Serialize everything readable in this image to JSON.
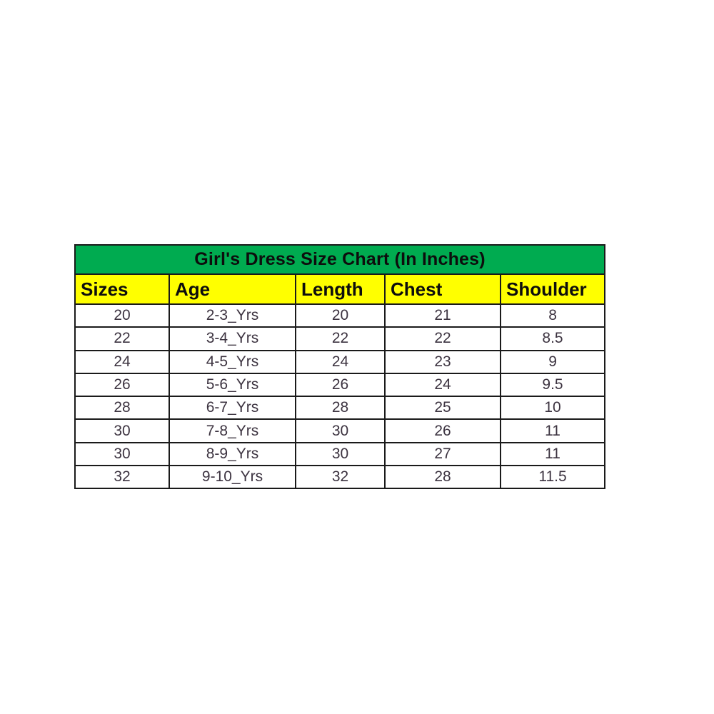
{
  "chart_data": {
    "type": "table",
    "title": "Girl's Dress Size Chart (In Inches)",
    "columns": [
      "Sizes",
      "Age",
      "Length",
      "Chest",
      "Shoulder"
    ],
    "rows": [
      [
        "20",
        "2-3_Yrs",
        "20",
        "21",
        "8"
      ],
      [
        "22",
        "3-4_Yrs",
        "22",
        "22",
        "8.5"
      ],
      [
        "24",
        "4-5_Yrs",
        "24",
        "23",
        "9"
      ],
      [
        "26",
        "5-6_Yrs",
        "26",
        "24",
        "9.5"
      ],
      [
        "28",
        "6-7_Yrs",
        "28",
        "25",
        "10"
      ],
      [
        "30",
        "7-8_Yrs",
        "30",
        "26",
        "11"
      ],
      [
        "30",
        "8-9_Yrs",
        "30",
        "27",
        "11"
      ],
      [
        "32",
        "9-10_Yrs",
        "32",
        "28",
        "11.5"
      ]
    ]
  },
  "table": {
    "title": "Girl's Dress Size Chart (In Inches)",
    "columns": [
      "Sizes",
      "Age",
      "Length",
      "Chest",
      "Shoulder"
    ],
    "rows": [
      [
        "20",
        "2-3_Yrs",
        "20",
        "21",
        "8"
      ],
      [
        "22",
        "3-4_Yrs",
        "22",
        "22",
        "8.5"
      ],
      [
        "24",
        "4-5_Yrs",
        "24",
        "23",
        "9"
      ],
      [
        "26",
        "5-6_Yrs",
        "26",
        "24",
        "9.5"
      ],
      [
        "28",
        "6-7_Yrs",
        "28",
        "25",
        "10"
      ],
      [
        "30",
        "7-8_Yrs",
        "30",
        "26",
        "11"
      ],
      [
        "30",
        "8-9_Yrs",
        "30",
        "27",
        "11"
      ],
      [
        "32",
        "9-10_Yrs",
        "32",
        "28",
        "11.5"
      ]
    ],
    "colors": {
      "title_background": "#00AB50",
      "header_background": "#FFFF00",
      "border": "#1a1a1a",
      "heading_text": "#0d0d0d",
      "data_text": "#3c3340",
      "page_background": "#ffffff"
    }
  }
}
